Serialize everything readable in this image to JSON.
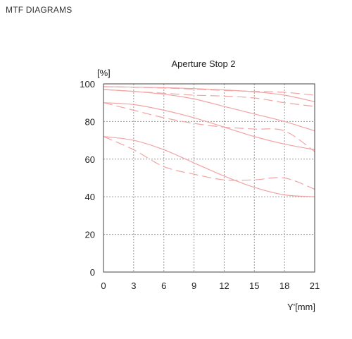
{
  "page": {
    "heading": "MTF DIAGRAMS"
  },
  "chart_data": {
    "type": "line",
    "title": "Aperture Stop 2",
    "xlabel": "Y'[mm]",
    "ylabel": "[%]",
    "xlim": [
      0,
      21
    ],
    "ylim": [
      0,
      100
    ],
    "xticks": [
      0,
      3,
      6,
      9,
      12,
      15,
      18,
      21
    ],
    "yticks": [
      0,
      20,
      40,
      60,
      80,
      100
    ],
    "grid": true,
    "line_color": "#f2a3a3",
    "series": [
      {
        "style": "solid",
        "x": [
          0,
          3,
          6,
          9,
          12,
          15,
          18,
          21
        ],
        "y": [
          98.5,
          98.3,
          98,
          97.5,
          96.8,
          95.8,
          94,
          90.5
        ]
      },
      {
        "style": "dashed",
        "x": [
          0,
          3,
          6,
          9,
          12,
          15,
          18,
          21
        ],
        "y": [
          98.5,
          98.2,
          97.8,
          97.2,
          96.5,
          96,
          95.5,
          94
        ]
      },
      {
        "style": "solid",
        "x": [
          0,
          3,
          6,
          9,
          12,
          15,
          18,
          21
        ],
        "y": [
          97,
          96,
          94.5,
          92,
          88,
          84,
          80,
          75
        ]
      },
      {
        "style": "dashed",
        "x": [
          0,
          3,
          6,
          9,
          12,
          15,
          18,
          21
        ],
        "y": [
          97,
          96,
          95,
          94,
          93.5,
          92.5,
          90,
          88
        ]
      },
      {
        "style": "solid",
        "x": [
          0,
          3,
          6,
          9,
          12,
          15,
          18,
          21
        ],
        "y": [
          90,
          89,
          86,
          82,
          77,
          72,
          68,
          65
        ]
      },
      {
        "style": "dashed",
        "x": [
          0,
          3,
          6,
          9,
          12,
          15,
          18,
          21
        ],
        "y": [
          90,
          86,
          82,
          79,
          77,
          76,
          75,
          64
        ]
      },
      {
        "style": "solid",
        "x": [
          0,
          3,
          6,
          9,
          12,
          15,
          18,
          21
        ],
        "y": [
          72,
          70,
          65,
          58,
          51,
          45,
          41,
          40
        ]
      },
      {
        "style": "dashed",
        "x": [
          0,
          3,
          6,
          9,
          12,
          15,
          18,
          21
        ],
        "y": [
          72,
          65,
          56,
          52,
          49,
          49,
          50,
          44
        ]
      }
    ]
  }
}
